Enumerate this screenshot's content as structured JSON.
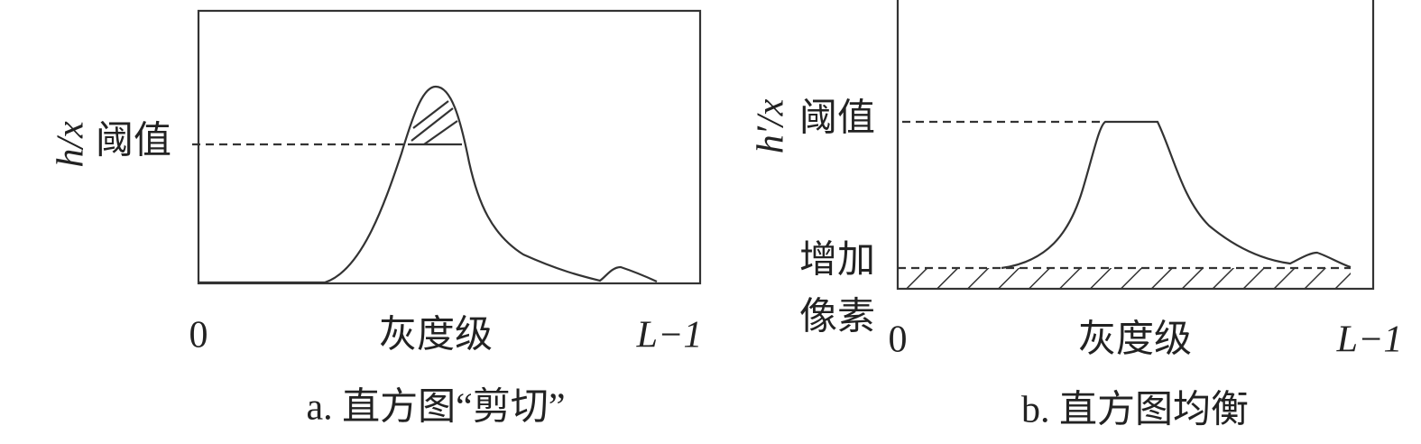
{
  "panels": [
    {
      "y_label": "h/x",
      "threshold_label": "阈值",
      "x_start": "0",
      "x_label": "灰度级",
      "x_end": "L−1",
      "caption": "a. 直方图“剪切”"
    },
    {
      "y_label": "h′/x",
      "threshold_label": "阈值",
      "added_label": [
        "增加",
        "像素"
      ],
      "x_start": "0",
      "x_label": "灰度级",
      "x_end": "L−1",
      "caption": "b. 直方图均衡"
    }
  ]
}
